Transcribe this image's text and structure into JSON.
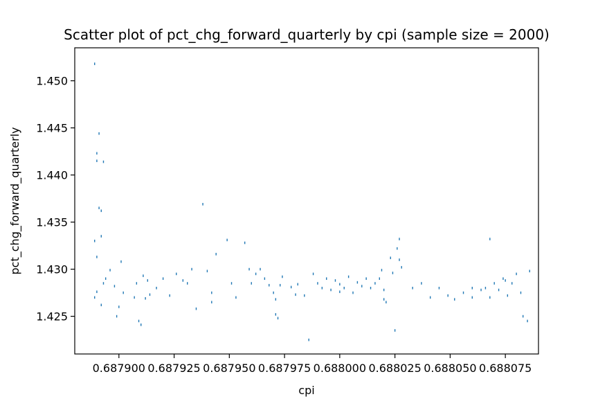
{
  "chart_data": {
    "type": "scatter",
    "title": "Scatter plot of pct_chg_forward_quarterly by cpi (sample size = 2000)",
    "xlabel": "cpi",
    "ylabel": "pct_chg_forward_quarterly",
    "xlim": [
      0.68788,
      0.68809
    ],
    "ylim": [
      1.421,
      1.4535
    ],
    "xticks": [
      0.6879,
      0.687925,
      0.68795,
      0.687975,
      0.688,
      0.688025,
      0.68805,
      0.688075
    ],
    "xtick_labels": [
      "0.687900",
      "0.687925",
      "0.687950",
      "0.687975",
      "0.688000",
      "0.688025",
      "0.688050",
      "0.688075"
    ],
    "yticks": [
      1.425,
      1.43,
      1.435,
      1.44,
      1.445,
      1.45
    ],
    "ytick_labels": [
      "1.425",
      "1.430",
      "1.435",
      "1.440",
      "1.445",
      "1.450"
    ],
    "grid": false,
    "marker_color": "#1f77b4",
    "series": [
      {
        "x": [
          0.687889,
          0.687891,
          0.68789,
          0.68789,
          0.687893,
          0.687891,
          0.687892,
          0.687889,
          0.68789,
          0.687892,
          0.687893,
          0.68789,
          0.687889,
          0.687892,
          0.687894,
          0.687896,
          0.687899,
          0.6879,
          0.687898,
          0.687901,
          0.687902,
          0.687907,
          0.687909,
          0.68791,
          0.687908,
          0.687911,
          0.687912,
          0.687913,
          0.687917,
          0.68792,
          0.687923,
          0.687926,
          0.687929,
          0.687931,
          0.687933,
          0.687938,
          0.68794,
          0.687942,
          0.687944,
          0.687949,
          0.687951,
          0.687953,
          0.687957,
          0.687959,
          0.68796,
          0.687962,
          0.687964,
          0.687966,
          0.687968,
          0.68797,
          0.687971,
          0.687972,
          0.687973,
          0.687971,
          0.687974,
          0.687978,
          0.687981,
          0.687984,
          0.687986,
          0.687988,
          0.68799,
          0.687992,
          0.687994,
          0.687996,
          0.687998,
          0.688,
          0.688002,
          0.688004,
          0.688006,
          0.688008,
          0.68801,
          0.688012,
          0.688014,
          0.688016,
          0.688018,
          0.688019,
          0.68802,
          0.688021,
          0.688023,
          0.688024,
          0.688025,
          0.688026,
          0.688027,
          0.688027,
          0.688028,
          0.688033,
          0.688037,
          0.688041,
          0.688045,
          0.688049,
          0.688052,
          0.688056,
          0.68806,
          0.688064,
          0.688066,
          0.688068,
          0.688068,
          0.68807,
          0.688072,
          0.688074,
          0.688076,
          0.688078,
          0.68808,
          0.688082,
          0.688083,
          0.688085,
          0.688086,
          0.687914,
          0.687935,
          0.687942,
          0.68798,
          0.688,
          0.68802,
          0.68806,
          0.688075
        ],
        "y": [
          1.4518,
          1.4444,
          1.4423,
          1.4415,
          1.4414,
          1.4365,
          1.4362,
          1.433,
          1.4313,
          1.4335,
          1.4285,
          1.4276,
          1.427,
          1.4262,
          1.429,
          1.4299,
          1.425,
          1.426,
          1.4282,
          1.4308,
          1.4275,
          1.427,
          1.4245,
          1.4241,
          1.4285,
          1.4293,
          1.4269,
          1.4288,
          1.428,
          1.429,
          1.4272,
          1.4295,
          1.4288,
          1.4285,
          1.43,
          1.4369,
          1.4298,
          1.4275,
          1.4316,
          1.4331,
          1.4285,
          1.427,
          1.4328,
          1.43,
          1.4285,
          1.4295,
          1.43,
          1.429,
          1.4283,
          1.4275,
          1.4252,
          1.4248,
          1.4283,
          1.4268,
          1.4292,
          1.4281,
          1.4284,
          1.4272,
          1.4225,
          1.4295,
          1.4285,
          1.428,
          1.429,
          1.4278,
          1.4288,
          1.4284,
          1.428,
          1.4292,
          1.4275,
          1.4286,
          1.4282,
          1.429,
          1.428,
          1.4285,
          1.429,
          1.4299,
          1.4278,
          1.4265,
          1.4312,
          1.4296,
          1.4235,
          1.4322,
          1.431,
          1.4332,
          1.4302,
          1.428,
          1.4285,
          1.427,
          1.428,
          1.4272,
          1.4268,
          1.4275,
          1.427,
          1.4278,
          1.428,
          1.427,
          1.4332,
          1.4285,
          1.4278,
          1.429,
          1.4272,
          1.4285,
          1.4295,
          1.4275,
          1.425,
          1.4245,
          1.4298,
          1.4273,
          1.4258,
          1.4265,
          1.4273,
          1.4276,
          1.4268,
          1.428,
          1.4288
        ]
      }
    ]
  }
}
